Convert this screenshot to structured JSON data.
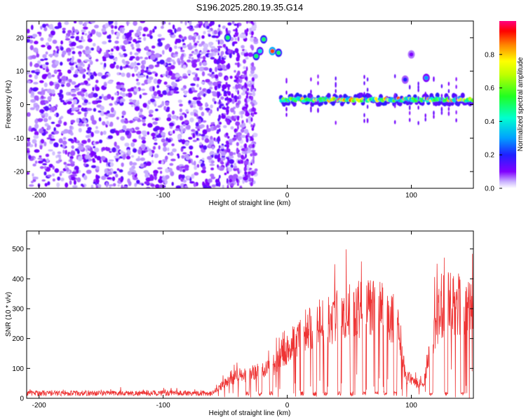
{
  "title": "S196.2025.280.19.35.G14",
  "chart_data": [
    {
      "type": "heatmap",
      "xlabel": "Height of straight line (km)",
      "ylabel": "Frequency (Hz)",
      "xlim": [
        -210,
        150
      ],
      "ylim": [
        -25,
        25
      ],
      "xticks": [
        -200,
        -100,
        0,
        100
      ],
      "yticks": [
        -20,
        -10,
        0,
        10,
        20
      ],
      "colorbar": {
        "label": "Normalized spectral amplitude",
        "range": [
          0,
          1
        ],
        "ticks": [
          0,
          0.2,
          0.4,
          0.6,
          0.8
        ]
      },
      "features": [
        {
          "name": "noise",
          "x_range": [
            -210,
            -25
          ],
          "freq_range": [
            -25,
            25
          ],
          "amplitude": 0.15
        },
        {
          "name": "carrier",
          "x_range": [
            -5,
            150
          ],
          "freq": 1.5,
          "amplitude": 0.85
        },
        {
          "name": "transition blobs",
          "points": [
            [
              -48,
              20,
              0.5
            ],
            [
              -25,
              14.5,
              0.5
            ],
            [
              -22,
              16,
              0.4
            ],
            [
              -19,
              19.5,
              0.5
            ],
            [
              -12,
              16,
              0.9
            ],
            [
              -7,
              15.5,
              0.5
            ]
          ]
        },
        {
          "name": "upper band",
          "points": [
            [
              95,
              7.5,
              0.2
            ],
            [
              112,
              8,
              0.3
            ],
            [
              100,
              15,
              0.1
            ]
          ]
        }
      ]
    },
    {
      "type": "line",
      "xlabel": "Height of straight line (km)",
      "ylabel": "SNR (10 * v/v)",
      "xlim": [
        -210,
        150
      ],
      "ylim": [
        0,
        560
      ],
      "xticks": [
        -200,
        -100,
        0,
        100
      ],
      "yticks": [
        0,
        100,
        200,
        300,
        400,
        500
      ],
      "color": "#ee3333",
      "envelope": [
        [
          -210,
          25
        ],
        [
          -60,
          25
        ],
        [
          -50,
          60
        ],
        [
          -40,
          90
        ],
        [
          -20,
          110
        ],
        [
          -10,
          140
        ],
        [
          0,
          200
        ],
        [
          10,
          240
        ],
        [
          20,
          290
        ],
        [
          30,
          310
        ],
        [
          40,
          340
        ],
        [
          50,
          350
        ],
        [
          60,
          360
        ],
        [
          70,
          370
        ],
        [
          80,
          360
        ],
        [
          90,
          300
        ],
        [
          95,
          90
        ],
        [
          105,
          60
        ],
        [
          110,
          60
        ],
        [
          120,
          320
        ],
        [
          130,
          390
        ],
        [
          140,
          380
        ],
        [
          150,
          380
        ]
      ],
      "dropouts": [
        -32,
        -22,
        -13,
        12,
        22,
        31,
        42,
        52,
        62,
        72,
        79,
        87,
        116,
        128,
        141
      ]
    }
  ]
}
